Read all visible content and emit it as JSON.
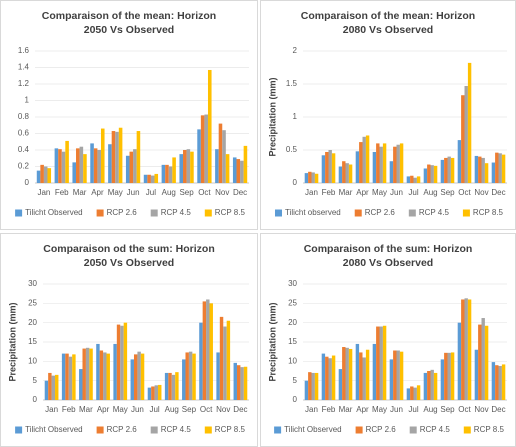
{
  "chart_data": [
    {
      "type": "bar",
      "title": "Comparaison of the mean: Horizon 2050 Vs Observed",
      "categories": [
        "Jan",
        "Feb",
        "Mar",
        "Apr",
        "May",
        "Jun",
        "Jul",
        "Aug",
        "Sep",
        "Oct",
        "Nov",
        "Dec"
      ],
      "series": [
        {
          "name": "Tilicht Observed",
          "color": "#5b9bd5",
          "values": [
            0.15,
            0.42,
            0.25,
            0.48,
            0.47,
            0.33,
            0.1,
            0.22,
            0.35,
            0.65,
            0.41,
            0.31
          ]
        },
        {
          "name": "RCP 2.6",
          "color": "#ed7d31",
          "values": [
            0.22,
            0.41,
            0.42,
            0.42,
            0.63,
            0.38,
            0.1,
            0.22,
            0.4,
            0.82,
            0.72,
            0.29
          ]
        },
        {
          "name": "RCP 4.5",
          "color": "#a5a5a5",
          "values": [
            0.2,
            0.38,
            0.44,
            0.4,
            0.62,
            0.41,
            0.09,
            0.2,
            0.41,
            0.83,
            0.64,
            0.27
          ]
        },
        {
          "name": "RCP 8.5",
          "color": "#ffc000",
          "values": [
            0.18,
            0.51,
            0.35,
            0.66,
            0.67,
            0.63,
            0.11,
            0.31,
            0.38,
            1.37,
            0.35,
            0.45
          ]
        }
      ],
      "ylim": [
        0,
        1.6
      ],
      "yticks": [
        0,
        0.2,
        0.4,
        0.6,
        0.8,
        1,
        1.2,
        1.4,
        1.6
      ],
      "grid": true,
      "legend": "bottom"
    },
    {
      "type": "bar",
      "title": "Comparaison of the mean: Horizon 2080 Vs Observed",
      "y_label": "Precipitation (mm)",
      "categories": [
        "Jan",
        "Feb",
        "Mar",
        "Apr",
        "May",
        "Jun",
        "Jul",
        "Aug",
        "Sep",
        "Oct",
        "Nov",
        "Dec"
      ],
      "series": [
        {
          "name": "Tilicht observed",
          "color": "#5b9bd5",
          "values": [
            0.15,
            0.42,
            0.25,
            0.48,
            0.47,
            0.33,
            0.1,
            0.22,
            0.35,
            0.65,
            0.41,
            0.31
          ]
        },
        {
          "name": "RCP 2.6",
          "color": "#ed7d31",
          "values": [
            0.17,
            0.47,
            0.33,
            0.62,
            0.6,
            0.55,
            0.11,
            0.28,
            0.38,
            1.33,
            0.4,
            0.46
          ]
        },
        {
          "name": "RCP 4.5",
          "color": "#a5a5a5",
          "values": [
            0.16,
            0.5,
            0.3,
            0.7,
            0.55,
            0.58,
            0.08,
            0.27,
            0.4,
            1.47,
            0.38,
            0.45
          ]
        },
        {
          "name": "RCP 8.5",
          "color": "#ffc000",
          "values": [
            0.14,
            0.45,
            0.28,
            0.72,
            0.6,
            0.6,
            0.1,
            0.26,
            0.38,
            1.82,
            0.3,
            0.43
          ]
        }
      ],
      "ylim": [
        0,
        2
      ],
      "yticks": [
        0,
        0.5,
        1,
        1.5,
        2
      ],
      "grid": true,
      "legend": "bottom"
    },
    {
      "type": "bar",
      "title": "Comparaison od the sum: Horizon 2050 Vs Observed",
      "y_label": "Precipitation (mm)",
      "categories": [
        "Jan",
        "Feb",
        "Mar",
        "Apr",
        "May",
        "Jun",
        "Jul",
        "Aug",
        "Sep",
        "Oct",
        "Nov",
        "Dec"
      ],
      "series": [
        {
          "name": "Tilicht Observed",
          "color": "#5b9bd5",
          "values": [
            5,
            12,
            8,
            14.5,
            14.5,
            10.5,
            3.2,
            7,
            10.5,
            20,
            12.3,
            9.6
          ]
        },
        {
          "name": "RCP 2.6",
          "color": "#ed7d31",
          "values": [
            7,
            12,
            13.3,
            12.8,
            19.5,
            11.8,
            3.5,
            7,
            12.3,
            25.5,
            21.5,
            9
          ]
        },
        {
          "name": "RCP 4.5",
          "color": "#a5a5a5",
          "values": [
            6.3,
            11.2,
            13.5,
            12.3,
            19.2,
            12.5,
            3.8,
            6.5,
            12.5,
            26,
            19,
            8.5
          ]
        },
        {
          "name": "RCP 8.5",
          "color": "#ffc000",
          "values": [
            6.5,
            11.8,
            13.3,
            12,
            20,
            12,
            3.9,
            7.2,
            12,
            25,
            20.5,
            8.6
          ]
        }
      ],
      "ylim": [
        0,
        30
      ],
      "yticks": [
        0,
        5,
        10,
        15,
        20,
        25,
        30
      ],
      "grid": true,
      "legend": "bottom"
    },
    {
      "type": "bar",
      "title": "Comparaison of the sum: Horizon 2080 Vs Observed",
      "y_label": "Precipitation (mm)",
      "categories": [
        "Jan",
        "Feb",
        "Mar",
        "Apr",
        "May",
        "Jun",
        "Jul",
        "Aug",
        "Sep",
        "Oct",
        "Nov",
        "Dec"
      ],
      "series": [
        {
          "name": "Tilicht Observed",
          "color": "#5b9bd5",
          "values": [
            5,
            12,
            8,
            14.5,
            14.5,
            10.5,
            3,
            7,
            10.5,
            20,
            13,
            9.8
          ]
        },
        {
          "name": "RCP 2.6",
          "color": "#ed7d31",
          "values": [
            7.2,
            11.2,
            13.7,
            12.3,
            19,
            12.8,
            3.5,
            7.5,
            12.2,
            26,
            19.5,
            9
          ]
        },
        {
          "name": "RCP 4.5",
          "color": "#a5a5a5",
          "values": [
            7,
            10.8,
            13.5,
            11,
            19,
            12.8,
            3.2,
            7.8,
            12.2,
            26.3,
            21.2,
            8.8
          ]
        },
        {
          "name": "RCP 8.5",
          "color": "#ffc000",
          "values": [
            7,
            11.5,
            13.2,
            13,
            19.2,
            12.5,
            3.8,
            7,
            12.3,
            26,
            19.2,
            9.2
          ]
        }
      ],
      "ylim": [
        0,
        30
      ],
      "yticks": [
        0,
        5,
        10,
        15,
        20,
        25,
        30
      ],
      "grid": true,
      "legend": "bottom"
    }
  ]
}
